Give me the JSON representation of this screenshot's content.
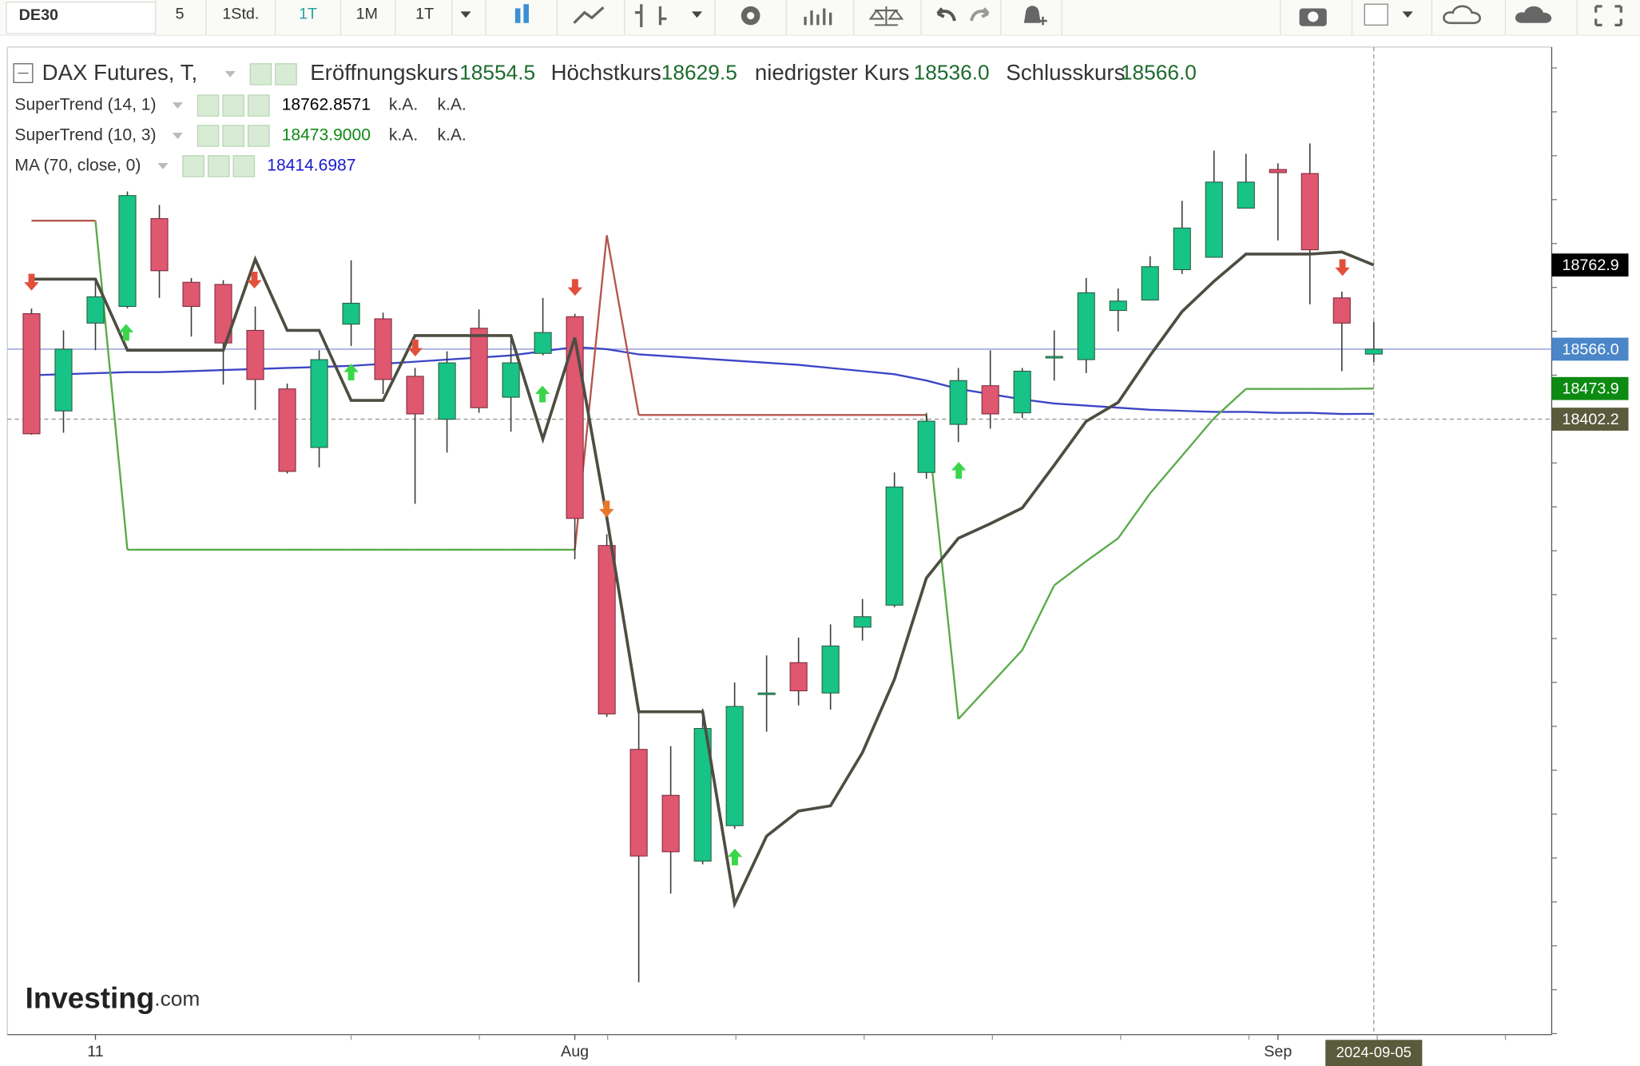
{
  "toolbar": {
    "symbol": "DE30",
    "intervals": [
      "5",
      "1Std.",
      "1T",
      "1M",
      "1T"
    ]
  },
  "legend": {
    "title": "DAX Futures, T,",
    "fields": [
      {
        "label": "Eröffnungskurs",
        "value": "18554.5"
      },
      {
        "label": "Höchstkurs",
        "value": "18629.5"
      },
      {
        "label": "niedrigster Kurs",
        "value": "18536.0"
      },
      {
        "label": "Schlusskurs",
        "value": "18566.0"
      }
    ],
    "indicators": [
      {
        "name": "SuperTrend (14, 1)",
        "value": "18762.8571",
        "extra": [
          "k.A.",
          "k.A."
        ]
      },
      {
        "name": "SuperTrend (10, 3)",
        "value": "18473.9000",
        "extra": [
          "k.A.",
          "k.A."
        ]
      },
      {
        "name": "MA (70, close, 0)",
        "value": "18414.6987"
      }
    ]
  },
  "logo": {
    "brand": "Investing",
    "suffix": ".com"
  },
  "chart_data": {
    "type": "candlestick",
    "x": [
      "2024-07-09",
      "2024-07-10",
      "2024-07-11",
      "2024-07-12",
      "2024-07-15",
      "2024-07-16",
      "2024-07-17",
      "2024-07-18",
      "2024-07-19",
      "2024-07-22",
      "2024-07-23",
      "2024-07-24",
      "2024-07-25",
      "2024-07-26",
      "2024-07-29",
      "2024-07-30",
      "2024-07-31",
      "2024-08-01",
      "2024-08-02",
      "2024-08-05",
      "2024-08-06",
      "2024-08-07",
      "2024-08-08",
      "2024-08-09",
      "2024-08-12",
      "2024-08-13",
      "2024-08-14",
      "2024-08-15",
      "2024-08-16",
      "2024-08-19",
      "2024-08-20",
      "2024-08-21",
      "2024-08-22",
      "2024-08-23",
      "2024-08-26",
      "2024-08-27",
      "2024-08-28",
      "2024-08-29",
      "2024-08-30",
      "2024-09-02",
      "2024-09-03",
      "2024-09-04",
      "2024-09-05"
    ],
    "open": [
      18649,
      18421.5,
      18627,
      18666,
      18871.5,
      18722.5,
      18717.5,
      18610,
      18473,
      18336,
      18624.5,
      18637,
      18502.5,
      18402,
      18615,
      18453.5,
      18556,
      18642,
      18106.5,
      17629.5,
      17522,
      17368,
      17451,
      17759,
      17832.5,
      17761.5,
      17915.5,
      17967,
      18277.5,
      18390,
      18480.5,
      18417,
      18546.5,
      18541.5,
      18656.5,
      18681,
      18752,
      18781,
      18896,
      18986.5,
      18977,
      18686,
      18554.5
    ],
    "high": [
      18661,
      18610,
      18727.5,
      18935,
      18903.5,
      18732.5,
      18727.5,
      18666,
      18485.5,
      18563.5,
      18774,
      18651.5,
      18522,
      18561,
      18659,
      18595.5,
      18686,
      18649,
      18133,
      17715,
      17637,
      17725,
      17786,
      17849.5,
      17891,
      17922,
      17981.5,
      18277.5,
      18417,
      18522,
      18563.5,
      18522,
      18610,
      18732.5,
      18708,
      18783.5,
      18913,
      19030.5,
      19023,
      19001,
      19047.5,
      18700.5,
      18629.5
    ],
    "low": [
      18365.5,
      18370.5,
      18563.5,
      18661.5,
      18686,
      18595.5,
      18483,
      18424,
      18275,
      18289.5,
      18573.5,
      18461,
      18204,
      18324,
      18417,
      18373,
      18551.5,
      18074.5,
      17705.5,
      17084.5,
      17292,
      17360.5,
      17443.5,
      17671,
      17732.5,
      17722.5,
      17884,
      17962,
      18263,
      18348.5,
      18380,
      18404.5,
      18492.5,
      18510,
      18607.5,
      18681,
      18742,
      18781,
      18896,
      18820.5,
      18671,
      18514.5,
      18536
    ],
    "close": [
      18368,
      18566,
      18688.5,
      18925.5,
      18749.5,
      18666,
      18580.5,
      18495,
      18280,
      18541.5,
      18673.5,
      18495,
      18414.5,
      18534,
      18429,
      18534,
      18605,
      18170,
      17712.5,
      17380,
      17390,
      17678.5,
      17730,
      17761.5,
      17766.5,
      17871.5,
      17940,
      18243.5,
      18397.5,
      18492.5,
      18414.5,
      18514.5,
      18549,
      18698,
      18678.5,
      18759,
      18849.5,
      18957,
      18957,
      18979,
      18798.5,
      18627,
      18566
    ],
    "up_color": "#17c387",
    "down_color": "#e05770",
    "wick_color": "#3a3a3a",
    "series": [
      {
        "name": "SuperTrend (14, 1)",
        "color": "#4d4d42",
        "values": [
          18729.8,
          18729.8,
          18729.8,
          18563.6,
          18563.6,
          18563.6,
          18563.6,
          18776.3,
          18610,
          18610,
          18446.2,
          18446.2,
          18597.8,
          18597.8,
          18597.8,
          18597.8,
          18355.7,
          18592.9,
          18172.4,
          17717.6,
          17717.6,
          17717.6,
          17267.7,
          17426.6,
          17485.3,
          17497.5,
          17622.2,
          17793.4,
          18030.5,
          18123.5,
          18157.7,
          18194.4,
          18294.6,
          18397.3,
          18441.3,
          18551.3,
          18654,
          18724.9,
          18788.5,
          18788.5,
          18788.5,
          18793.4,
          18762.8571
        ]
      },
      {
        "name": "SuperTrend (10, 3)",
        "color": "#5aab4a",
        "values": [
          18866.7,
          18866.7,
          18866.7,
          18096.6,
          18096.6,
          18096.6,
          18096.6,
          18096.6,
          18096.6,
          18096.6,
          18096.6,
          18096.6,
          18096.6,
          18096.6,
          18096.6,
          18096.6,
          18096.6,
          18096.6,
          18832.5,
          18412,
          18412,
          18412,
          18412,
          18412,
          18412,
          18412,
          18412,
          18412,
          18412,
          17700.5,
          17781.2,
          17861.8,
          18013.4,
          18069.7,
          18123.5,
          18228.6,
          18316.6,
          18404.6,
          18473.1,
          18473.1,
          18473.1,
          18473.1,
          18473.9
        ],
        "colors": [
          "#b4574e",
          "#b4574e",
          "#b4574e",
          "#5aab4a",
          "#5aab4a",
          "#5aab4a",
          "#5aab4a",
          "#5aab4a",
          "#5aab4a",
          "#5aab4a",
          "#5aab4a",
          "#5aab4a",
          "#5aab4a",
          "#5aab4a",
          "#5aab4a",
          "#5aab4a",
          "#5aab4a",
          "#5aab4a",
          "#b4574e",
          "#b4574e",
          "#b4574e",
          "#b4574e",
          "#b4574e",
          "#b4574e",
          "#b4574e",
          "#b4574e",
          "#b4574e",
          "#b4574e",
          "#b4574e",
          "#5aab4a",
          "#5aab4a",
          "#5aab4a",
          "#5aab4a",
          "#5aab4a",
          "#5aab4a",
          "#5aab4a",
          "#5aab4a",
          "#5aab4a",
          "#5aab4a",
          "#5aab4a",
          "#5aab4a",
          "#5aab4a",
          "#5aab4a"
        ]
      },
      {
        "name": "MA (70, close, 0)",
        "color": "#3b45c5",
        "values": [
          18504.9,
          18507.3,
          18509.8,
          18512.2,
          18512.2,
          18514.7,
          18517.1,
          18519.5,
          18522,
          18524.4,
          18526.9,
          18531.8,
          18536.7,
          18541.6,
          18546.4,
          18551.3,
          18561.1,
          18570.9,
          18566,
          18553.8,
          18548.9,
          18544,
          18539.1,
          18534.2,
          18529.3,
          18522,
          18514.7,
          18507.3,
          18492.6,
          18473.1,
          18460.9,
          18448.6,
          18438.9,
          18434,
          18429.1,
          18424.2,
          18421.7,
          18419.3,
          18419.3,
          18416.9,
          18416.9,
          18414.4,
          18414.6987
        ]
      }
    ],
    "ylim": [
      16962,
      19273
    ],
    "xticks": [
      {
        "value": "2024-07-11",
        "label": "11"
      },
      {
        "value": "2024-08-01",
        "label": "Aug"
      },
      {
        "value": "2024-09-02",
        "label": "Sep"
      }
    ],
    "price_labels": [
      {
        "value": 18762.9,
        "label": "18762.9",
        "color": "#000000"
      },
      {
        "value": 18566,
        "label": "18566.0",
        "color": "#4a86c8"
      },
      {
        "value": 18473.9,
        "label": "18473.9",
        "color": "#0d8a12"
      }
    ],
    "crosshair": {
      "x": "2024-09-05",
      "y": {
        "value": 18402.2,
        "label": "18402.2"
      },
      "color": "#5a5a3c"
    }
  }
}
